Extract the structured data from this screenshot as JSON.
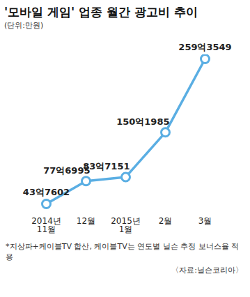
{
  "chart_data": {
    "type": "line",
    "title": "'모바일 게임' 업종 월간 광고비 추이",
    "subtitle": "(단위:만원)",
    "categories": [
      "2014년 11월",
      "12월",
      "2015년 1월",
      "2월",
      "3월"
    ],
    "values": [
      437602,
      776995,
      837151,
      1501985,
      2593549
    ],
    "value_labels": [
      "43억7602",
      "77억6995",
      "83억7151",
      "150억1985",
      "259억3549"
    ],
    "data_labels": true,
    "color": "#5aaee3",
    "marker": "circle",
    "tick_labels": "x",
    "grid": false,
    "caption": "*지상파+케이블TV 합산, 케이블TV는 연도별 닐슨 추정 보너스율 적용",
    "source": "〈자료:닐슨코리아〉"
  }
}
